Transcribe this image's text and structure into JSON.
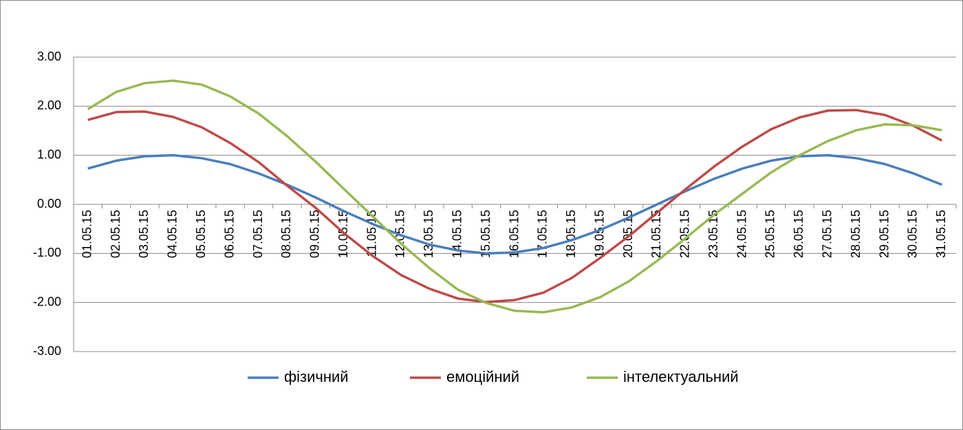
{
  "chart_data": {
    "type": "line",
    "categories": [
      "01.05.15",
      "02.05.15",
      "03.05.15",
      "04.05.15",
      "05.05.15",
      "06.05.15",
      "07.05.15",
      "08.05.15",
      "09.05.15",
      "10.05.15",
      "11.05.15",
      "12.05.15",
      "13.05.15",
      "14.05.15",
      "15.05.15",
      "16.05.15",
      "17.05.15",
      "18.05.15",
      "19.05.15",
      "20.05.15",
      "21.05.15",
      "22.05.15",
      "23.05.15",
      "24.05.15",
      "25.05.15",
      "26.05.15",
      "27.05.15",
      "28.05.15",
      "29.05.15",
      "30.05.15",
      "31.05.15"
    ],
    "series": [
      {
        "name": "фізичний",
        "color": "#4a7ebb",
        "values": [
          0.73,
          0.89,
          0.98,
          1.0,
          0.94,
          0.82,
          0.63,
          0.4,
          0.14,
          -0.14,
          -0.4,
          -0.63,
          -0.82,
          -0.94,
          -1.0,
          -0.98,
          -0.89,
          -0.73,
          -0.52,
          -0.27,
          0.0,
          0.27,
          0.52,
          0.73,
          0.89,
          0.98,
          1.0,
          0.94,
          0.82,
          0.63,
          0.4
        ]
      },
      {
        "name": "емоційний",
        "color": "#be4b48",
        "values": [
          1.72,
          1.88,
          1.89,
          1.78,
          1.57,
          1.25,
          0.86,
          0.38,
          -0.07,
          -0.59,
          -1.05,
          -1.44,
          -1.72,
          -1.92,
          -1.99,
          -1.95,
          -1.8,
          -1.5,
          -1.09,
          -0.65,
          -0.17,
          0.31,
          0.77,
          1.18,
          1.53,
          1.77,
          1.91,
          1.92,
          1.82,
          1.6,
          1.3
        ]
      },
      {
        "name": "інтелектуальний",
        "color": "#98b954",
        "values": [
          1.94,
          2.29,
          2.47,
          2.52,
          2.44,
          2.2,
          1.85,
          1.39,
          0.87,
          0.31,
          -0.24,
          -0.8,
          -1.3,
          -1.74,
          -2.01,
          -2.17,
          -2.2,
          -2.1,
          -1.89,
          -1.57,
          -1.15,
          -0.69,
          -0.21,
          0.22,
          0.65,
          1.0,
          1.29,
          1.51,
          1.63,
          1.61,
          1.51
        ]
      }
    ],
    "ylim": [
      -3,
      3
    ],
    "yticks": [
      {
        "value": -3,
        "label": "-3.00"
      },
      {
        "value": -2,
        "label": "-2.00"
      },
      {
        "value": -1,
        "label": "-1.00"
      },
      {
        "value": 0,
        "label": "0.00"
      },
      {
        "value": 1,
        "label": "1.00"
      },
      {
        "value": 2,
        "label": "2.00"
      },
      {
        "value": 3,
        "label": "3.00"
      }
    ],
    "grid": true,
    "legend": "bottom"
  }
}
